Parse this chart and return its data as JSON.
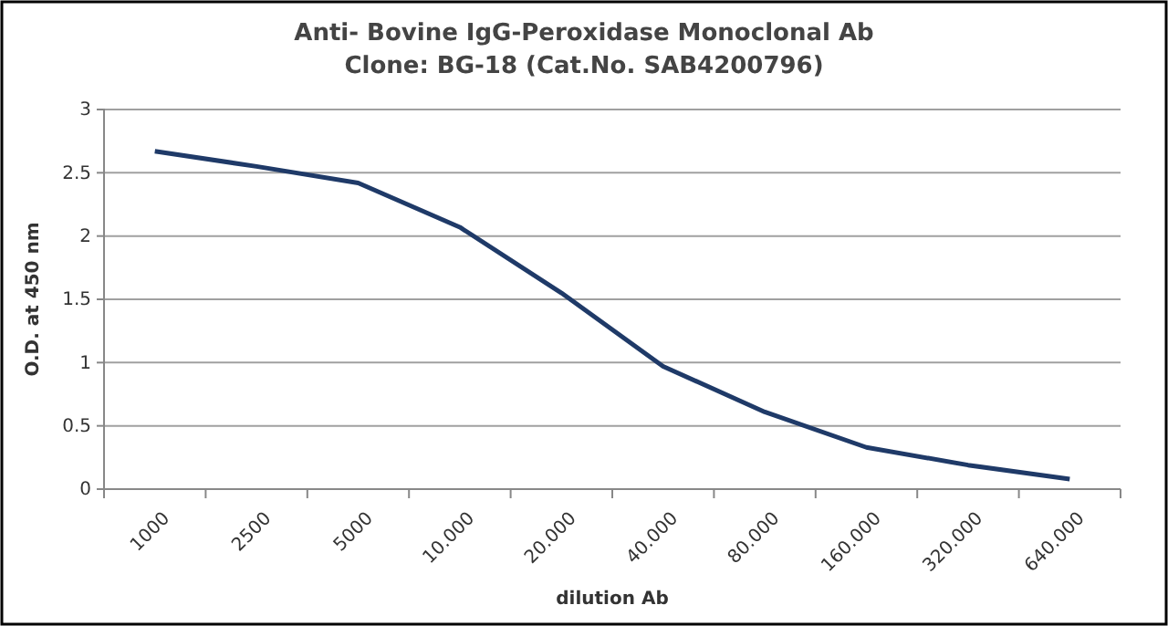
{
  "chart_data": {
    "type": "line",
    "title": "Anti- Bovine IgG-Peroxidase Monoclonal Ab\nClone: BG-18 (Cat.No. SAB4200796)",
    "xlabel": "dilution Ab",
    "ylabel": "O.D. at 450 nm",
    "categories": [
      "1000",
      "2500",
      "5000",
      "10.000",
      "20.000",
      "40.000",
      "80.000",
      "160.000",
      "320.000",
      "640.000"
    ],
    "series": [
      {
        "color": "#1f3a68",
        "values": [
          2.67,
          2.55,
          2.42,
          2.07,
          1.55,
          0.97,
          0.61,
          0.33,
          0.19,
          0.08
        ]
      }
    ],
    "ylim": [
      0,
      3
    ],
    "yticks": [
      0,
      0.5,
      1,
      1.5,
      2,
      2.5,
      3
    ],
    "grid": "y",
    "marker": "none",
    "line_style": "solid"
  }
}
